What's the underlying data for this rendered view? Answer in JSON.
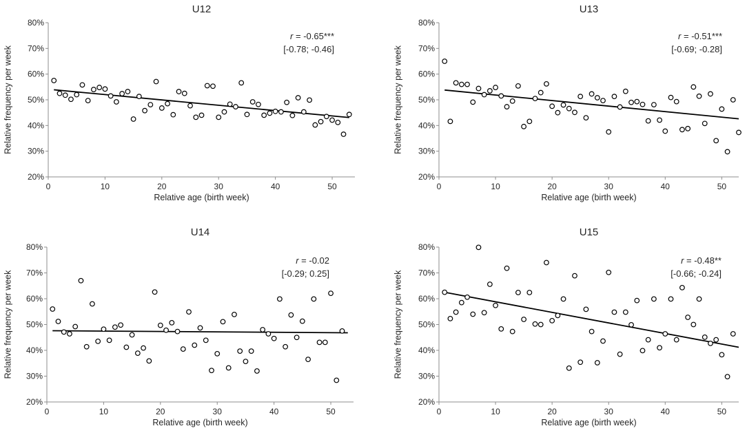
{
  "chart_data": [
    {
      "type": "scatter",
      "title": "U12",
      "xlabel": "Relative age (birth week)",
      "ylabel": "Relative frequency per week",
      "xlim": [
        0,
        54
      ],
      "ylim": [
        20,
        80
      ],
      "xticks": [
        "0",
        "10",
        "20",
        "30",
        "40",
        "50"
      ],
      "yticks": [
        "20%",
        "30%",
        "40%",
        "50%",
        "60%",
        "70%",
        "80%"
      ],
      "stat_r_symbol": "r",
      "stat_r_value": " = -0.65***",
      "stat_ci": "[-0.78; -0.46]",
      "trendline": [
        [
          1,
          53.9
        ],
        [
          53,
          43.1
        ]
      ],
      "x": [
        1,
        2,
        3,
        4,
        5,
        6,
        7,
        8,
        9,
        10,
        11,
        12,
        13,
        14,
        15,
        16,
        17,
        18,
        19,
        20,
        21,
        22,
        23,
        24,
        25,
        26,
        27,
        28,
        29,
        30,
        31,
        32,
        33,
        34,
        35,
        36,
        37,
        38,
        39,
        40,
        41,
        42,
        43,
        44,
        45,
        46,
        47,
        48,
        49,
        50,
        51,
        52,
        53
      ],
      "y": [
        57.5,
        52.5,
        51.8,
        50.2,
        52,
        55.8,
        49.7,
        54,
        54.8,
        54.2,
        51.5,
        49.2,
        52.4,
        53.2,
        42.5,
        51.3,
        45.8,
        48.1,
        57.1,
        46.8,
        48.5,
        44.2,
        53.2,
        52.5,
        47.7,
        43.2,
        44,
        55.5,
        55.3,
        43.2,
        45.3,
        48.3,
        47.3,
        56.6,
        44.3,
        49.2,
        48.2,
        44,
        44.8,
        45.5,
        45.3,
        49,
        43.9,
        50.8,
        45.3,
        49.9,
        40.2,
        41.5,
        43.5,
        42.1,
        41.2,
        36.6,
        44.3
      ]
    },
    {
      "type": "scatter",
      "title": "U13",
      "xlabel": "Relative age (birth week)",
      "ylabel": "Relative frequency per week",
      "xlim": [
        0,
        53
      ],
      "ylim": [
        20,
        80
      ],
      "xticks": [
        "0",
        "10",
        "20",
        "30",
        "40",
        "50"
      ],
      "yticks": [
        "20%",
        "30%",
        "40%",
        "50%",
        "60%",
        "70%",
        "80%"
      ],
      "stat_r_symbol": "r",
      "stat_r_value": " = -0.51***",
      "stat_ci": "[-0.69; -0.28]",
      "trendline": [
        [
          1,
          53.8
        ],
        [
          53,
          42.6
        ]
      ],
      "x": [
        1,
        2,
        3,
        4,
        5,
        6,
        7,
        8,
        9,
        10,
        11,
        12,
        13,
        14,
        15,
        16,
        17,
        18,
        19,
        20,
        21,
        22,
        23,
        24,
        25,
        26,
        27,
        28,
        29,
        30,
        31,
        32,
        33,
        34,
        35,
        36,
        37,
        38,
        39,
        40,
        41,
        42,
        43,
        44,
        45,
        46,
        47,
        48,
        49,
        50,
        51,
        52,
        53
      ],
      "y": [
        65,
        41.6,
        56.6,
        56,
        56,
        49.1,
        54.4,
        52,
        53.5,
        54.8,
        51.5,
        47.3,
        49.5,
        55.4,
        39.6,
        41.6,
        50.5,
        52.8,
        56.2,
        47.5,
        45,
        48,
        46.6,
        45.1,
        51.3,
        43,
        52.3,
        50.8,
        49.7,
        37.5,
        51.3,
        47.2,
        53.3,
        49,
        49.3,
        48.2,
        41.8,
        48.1,
        42.1,
        37.8,
        50.9,
        49.3,
        38.4,
        38.8,
        55,
        51.4,
        40.8,
        52.3,
        34.1,
        46.4,
        29.8,
        50,
        37.3
      ]
    },
    {
      "type": "scatter",
      "title": "U14",
      "xlabel": "Relative age (birth week)",
      "ylabel": "Relative frequency per week",
      "xlim": [
        0,
        54
      ],
      "ylim": [
        20,
        80
      ],
      "xticks": [
        "0",
        "10",
        "20",
        "30",
        "40",
        "50"
      ],
      "yticks": [
        "20%",
        "30%",
        "40%",
        "50%",
        "60%",
        "70%",
        "80%"
      ],
      "stat_r_symbol": "r",
      "stat_r_value": " = -0.02",
      "stat_ci": "[-0.29; 0.25]",
      "trendline": [
        [
          1,
          47.6
        ],
        [
          53,
          46.8
        ]
      ],
      "x": [
        1,
        2,
        3,
        4,
        5,
        6,
        7,
        8,
        9,
        10,
        11,
        12,
        13,
        14,
        15,
        16,
        17,
        18,
        19,
        20,
        21,
        22,
        23,
        24,
        25,
        26,
        27,
        28,
        29,
        30,
        31,
        32,
        33,
        34,
        35,
        36,
        37,
        38,
        39,
        40,
        41,
        42,
        43,
        44,
        45,
        46,
        47,
        48,
        49,
        50,
        51,
        52
      ],
      "y": [
        56,
        51.2,
        47.1,
        46.4,
        49.2,
        67,
        41.4,
        58,
        43.5,
        48.2,
        43.9,
        49,
        49.8,
        41.2,
        46,
        38.9,
        40.9,
        35.9,
        62.6,
        49.7,
        47.8,
        50.7,
        47.3,
        40.5,
        54.9,
        42,
        48.7,
        43.9,
        32.2,
        38.7,
        51.1,
        33.2,
        53.9,
        39.7,
        35.7,
        39.7,
        32,
        48,
        46.4,
        44.6,
        59.9,
        41.4,
        53.7,
        45,
        51.3,
        36.5,
        59.9,
        43.1,
        43.1,
        62.1,
        28.4,
        47.5
      ]
    },
    {
      "type": "scatter",
      "title": "U15",
      "xlabel": "Relative age (birth week)",
      "ylabel": "Relative frequency per week",
      "xlim": [
        0,
        53
      ],
      "ylim": [
        20,
        80
      ],
      "xticks": [
        "0",
        "10",
        "20",
        "30",
        "40",
        "50"
      ],
      "yticks": [
        "20%",
        "30%",
        "40%",
        "50%",
        "60%",
        "70%",
        "80%"
      ],
      "stat_r_symbol": "r",
      "stat_r_value": " = -0.48**",
      "stat_ci": "[-0.66; -0.24]",
      "trendline": [
        [
          1,
          62.5
        ],
        [
          53,
          41.2
        ]
      ],
      "x": [
        1,
        2,
        3,
        4,
        5,
        6,
        7,
        8,
        9,
        10,
        11,
        12,
        13,
        14,
        15,
        16,
        17,
        18,
        19,
        20,
        21,
        22,
        23,
        24,
        25,
        26,
        27,
        28,
        29,
        30,
        31,
        32,
        33,
        34,
        35,
        36,
        37,
        38,
        39,
        40,
        41,
        42,
        43,
        44,
        45,
        46,
        47,
        48,
        49,
        50,
        51,
        52
      ],
      "y": [
        62.5,
        52.3,
        54.8,
        58.5,
        60.6,
        54,
        79.9,
        54.6,
        65.6,
        57.4,
        48.3,
        71.8,
        47.3,
        62.4,
        52,
        62.4,
        50.2,
        50,
        74,
        51.5,
        53.5,
        59.9,
        33.1,
        68.9,
        35.4,
        55.9,
        47.3,
        35.2,
        43.6,
        70.2,
        54.8,
        38.5,
        54.8,
        49.9,
        59.3,
        39.9,
        44.1,
        59.9,
        41,
        46.4,
        59.9,
        44.1,
        64.3,
        52.8,
        50,
        59.9,
        45.1,
        42.7,
        44.1,
        38.3,
        29.8,
        46.4
      ]
    }
  ]
}
